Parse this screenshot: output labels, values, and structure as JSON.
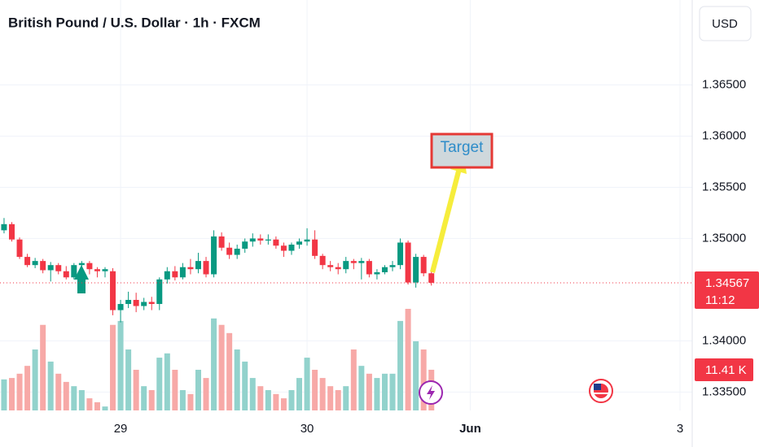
{
  "chart_data": {
    "type": "candlestick",
    "title": "British Pound / U.S. Dollar · 1h · FXCM",
    "currency": "USD",
    "annotation": "Target",
    "countdown": "11:12",
    "last_volume_label": "11.41 K",
    "up_color": "#089981",
    "down_color": "#f23645",
    "volume_up_color": "#92d2cc",
    "volume_down_color": "#f7a9a7",
    "open": [
      1.3508,
      1.3514,
      1.3499,
      1.3482,
      1.3474,
      1.3478,
      1.3469,
      1.3474,
      1.3468,
      1.3462,
      1.3474,
      1.3476,
      1.347,
      1.3468,
      1.3468,
      1.343,
      1.3436,
      1.344,
      1.3434,
      1.3438,
      1.3436,
      1.346,
      1.3468,
      1.3462,
      1.3472,
      1.347,
      1.3478,
      1.3465,
      1.3502,
      1.3491,
      1.3484,
      1.349,
      1.3497,
      1.35,
      1.3498,
      1.3499,
      1.3493,
      1.3488,
      1.3494,
      1.3497,
      1.3499,
      1.3483,
      1.3474,
      1.3472,
      1.347,
      1.3478,
      1.3476,
      1.3478,
      1.3465,
      1.3467,
      1.3472,
      1.3474,
      1.3496,
      1.3457,
      1.3482,
      1.3466
    ],
    "high": [
      1.352,
      1.3516,
      1.3501,
      1.3485,
      1.3481,
      1.348,
      1.3477,
      1.3476,
      1.3473,
      1.3476,
      1.3478,
      1.3478,
      1.3472,
      1.3472,
      1.3471,
      1.344,
      1.3448,
      1.3447,
      1.3442,
      1.3443,
      1.3462,
      1.3472,
      1.3473,
      1.3476,
      1.348,
      1.3486,
      1.3482,
      1.3508,
      1.3506,
      1.3496,
      1.3494,
      1.35,
      1.3505,
      1.3504,
      1.3504,
      1.3502,
      1.3496,
      1.3496,
      1.35,
      1.351,
      1.3508,
      1.3485,
      1.3478,
      1.3476,
      1.3482,
      1.348,
      1.3481,
      1.348,
      1.347,
      1.3474,
      1.3478,
      1.35,
      1.3498,
      1.3485,
      1.3484,
      1.3468
    ],
    "low": [
      1.3505,
      1.3497,
      1.348,
      1.3472,
      1.3471,
      1.3466,
      1.3458,
      1.3465,
      1.346,
      1.346,
      1.3468,
      1.3465,
      1.3462,
      1.3462,
      1.3425,
      1.3418,
      1.3432,
      1.3428,
      1.343,
      1.343,
      1.343,
      1.3456,
      1.3459,
      1.346,
      1.3465,
      1.3466,
      1.3462,
      1.3462,
      1.3488,
      1.348,
      1.348,
      1.3486,
      1.3492,
      1.3494,
      1.3494,
      1.349,
      1.3482,
      1.3484,
      1.349,
      1.3493,
      1.348,
      1.347,
      1.3468,
      1.3465,
      1.3466,
      1.347,
      1.346,
      1.3462,
      1.346,
      1.3465,
      1.3468,
      1.347,
      1.3455,
      1.3452,
      1.3463,
      1.3454
    ],
    "close": [
      1.3514,
      1.3499,
      1.3482,
      1.3474,
      1.3478,
      1.3469,
      1.3474,
      1.3468,
      1.3462,
      1.3474,
      1.3476,
      1.347,
      1.3468,
      1.347,
      1.343,
      1.3436,
      1.344,
      1.3434,
      1.3438,
      1.3436,
      1.346,
      1.3468,
      1.3462,
      1.3472,
      1.347,
      1.3478,
      1.3465,
      1.3502,
      1.3491,
      1.3484,
      1.349,
      1.3497,
      1.35,
      1.3498,
      1.3499,
      1.3493,
      1.3488,
      1.3494,
      1.3497,
      1.3499,
      1.3483,
      1.3474,
      1.3472,
      1.347,
      1.3478,
      1.3476,
      1.3478,
      1.3465,
      1.3467,
      1.3472,
      1.3474,
      1.3496,
      1.3457,
      1.3482,
      1.3466,
      1.34567
    ],
    "volume": [
      8.7,
      9.1,
      10.3,
      12.5,
      17.1,
      24.0,
      13.7,
      10.3,
      8.0,
      6.8,
      5.7,
      3.4,
      2.3,
      1.1,
      24.0,
      25.1,
      17.1,
      11.4,
      6.8,
      5.7,
      14.8,
      16.0,
      11.4,
      5.7,
      4.6,
      11.4,
      9.1,
      25.8,
      24.0,
      21.7,
      17.1,
      13.7,
      9.1,
      6.8,
      5.7,
      4.6,
      3.4,
      5.7,
      9.1,
      14.8,
      11.4,
      9.1,
      6.8,
      5.7,
      6.8,
      17.1,
      12.5,
      10.3,
      9.1,
      10.3,
      10.3,
      25.1,
      28.5,
      19.4,
      17.1,
      11.41
    ],
    "volume_ylim": [
      0,
      44
    ],
    "xlim": [
      -0.52,
      88.57
    ],
    "xticks": [
      {
        "value": 15,
        "label": "29"
      },
      {
        "value": 39,
        "label": "30"
      },
      {
        "value": 60,
        "label": "Jun"
      },
      {
        "value": 87,
        "label": "3"
      }
    ],
    "ylim": [
      1.3332,
      1.3733
    ],
    "yticks": [
      {
        "value": 1.335,
        "label": "1.33500"
      },
      {
        "value": 1.34,
        "label": "1.34000"
      },
      {
        "value": 1.35,
        "label": "1.35000"
      },
      {
        "value": 1.355,
        "label": "1.35500"
      },
      {
        "value": 1.36,
        "label": "1.36000"
      },
      {
        "value": 1.365,
        "label": "1.36500"
      }
    ],
    "grid": true
  }
}
